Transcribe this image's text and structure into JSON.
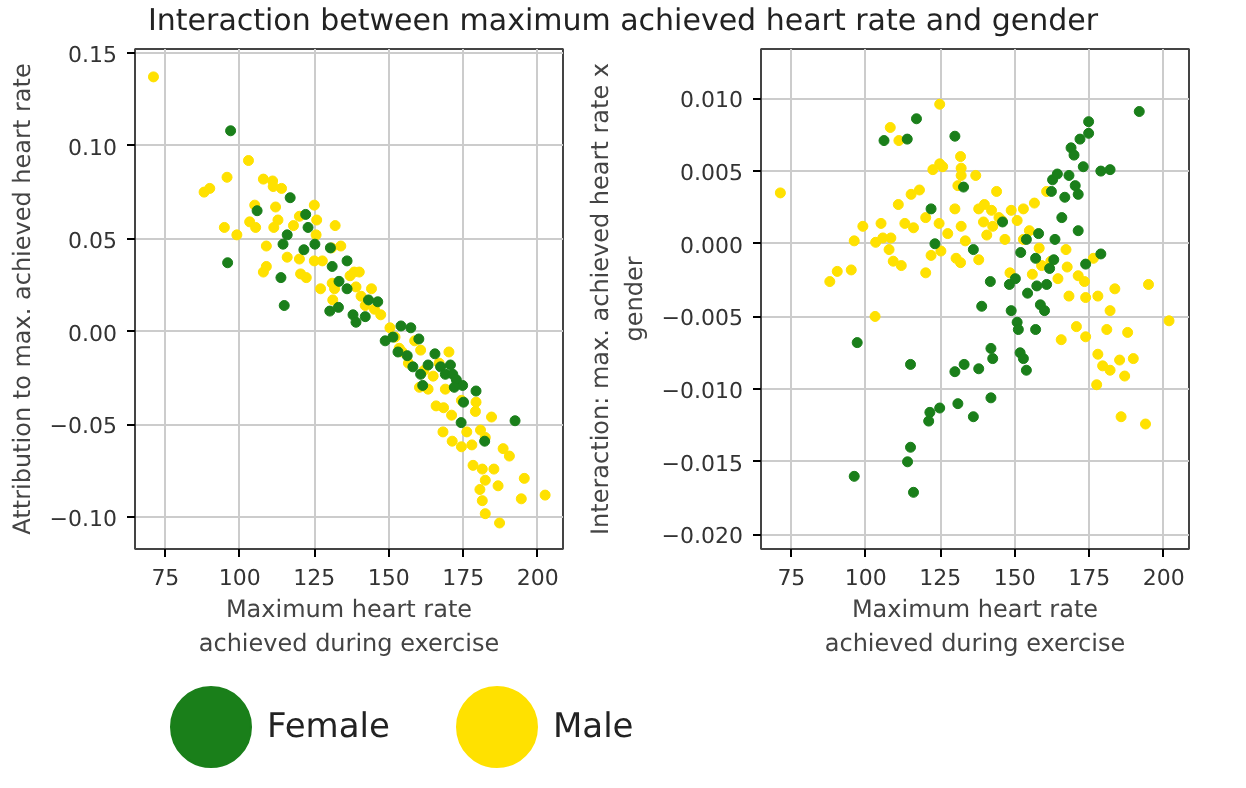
{
  "chart_data": [
    {
      "type": "scatter",
      "title": "Interaction between maximum achieved heart rate and gender",
      "xlabel": "Maximum heart rate\nachieved during exercise",
      "ylabel": "Attribution to max. achieved heart rate",
      "xlim": [
        64.8,
        208.5
      ],
      "ylim": [
        -0.117,
        0.152
      ],
      "xticks": [
        75,
        100,
        125,
        150,
        175,
        200
      ],
      "yticks": [
        {
          "value": -0.1,
          "label": "−0.10"
        },
        {
          "value": -0.05,
          "label": "−0.05"
        },
        {
          "value": 0,
          "label": "0.00"
        },
        {
          "value": 0.05,
          "label": "0.05"
        },
        {
          "value": 0.1,
          "label": "0.10"
        },
        {
          "value": 0.15,
          "label": "0.15"
        }
      ],
      "grid": true,
      "legend": "bottom",
      "marker": "circle",
      "series": [
        {
          "name": "Male",
          "color": "#ffe100",
          "x": [
            71,
            88.0,
            89.9,
            95.7,
            102.9,
            94.8,
            99.0,
            107.9,
            111.0,
            111.2,
            114.0,
            105.0,
            103.3,
            105.3,
            112.0,
            112.8,
            111.4,
            108.9,
            107.9,
            108.9,
            115.9,
            118.0,
            120.0,
            125.0,
            125.8,
            125.6,
            120.0,
            122.3,
            120.4,
            125.0,
            127.7,
            130.8,
            133.9,
            132.0,
            127.1,
            131.0,
            131.8,
            131.2,
            137.0,
            138.4,
            140.1,
            139.0,
            140.7,
            142.1,
            144.2,
            145.2,
            147.3,
            150.4,
            152.1,
            153.5,
            154.5,
            156.6,
            158.7,
            160.7,
            161.8,
            160.3,
            163.2,
            164.9,
            166.9,
            170.2,
            169.0,
            165.9,
            168.4,
            171.1,
            174.4,
            179.3,
            179.1,
            184.5,
            176.2,
            168.2,
            171.3,
            174.4,
            177.9,
            180.8,
            182.4,
            178.3,
            181.4,
            185.3,
            188.4,
            190.5,
            182.4,
            186.7,
            180.6,
            181.4,
            182.4,
            187.2,
            195.5,
            194.5,
            202.5
          ],
          "values": [
            0.137,
            0.075,
            0.077,
            0.083,
            0.092,
            0.056,
            0.052,
            0.082,
            0.081,
            0.078,
            0.077,
            0.068,
            0.059,
            0.056,
            0.067,
            0.06,
            0.056,
            0.046,
            0.032,
            0.035,
            0.04,
            0.057,
            0.062,
            0.068,
            0.06,
            0.052,
            0.039,
            0.029,
            0.031,
            0.038,
            0.038,
            0.045,
            0.046,
            0.057,
            0.023,
            0.026,
            0.023,
            0.017,
            0.03,
            0.032,
            0.032,
            0.024,
            0.019,
            0.014,
            0.023,
            0.012,
            0.009,
            0.002,
            -0.003,
            -0.009,
            -0.011,
            -0.017,
            -0.005,
            -0.01,
            -0.021,
            -0.03,
            -0.031,
            -0.024,
            -0.017,
            -0.011,
            -0.031,
            -0.04,
            -0.041,
            -0.045,
            -0.037,
            -0.038,
            -0.043,
            -0.046,
            -0.054,
            -0.054,
            -0.059,
            -0.062,
            -0.061,
            -0.053,
            -0.057,
            -0.072,
            -0.074,
            -0.074,
            -0.063,
            -0.067,
            -0.08,
            -0.083,
            -0.085,
            -0.091,
            -0.098,
            -0.103,
            -0.079,
            -0.09,
            -0.088
          ]
        },
        {
          "name": "Female",
          "color": "#1a7f1a",
          "x": [
            96.9,
            95.9,
            105.8,
            116.9,
            122.1,
            122.9,
            115.9,
            114.5,
            113.8,
            114.9,
            121.5,
            125.2,
            130.4,
            131.0,
            136.0,
            133.3,
            130.2,
            133.1,
            136.0,
            138.0,
            139.0,
            143.2,
            146.3,
            142.1,
            148.8,
            151.4,
            154.1,
            157.4,
            153.1,
            156.2,
            160.1,
            158.1,
            160.7,
            161.4,
            163.2,
            165.5,
            167.4,
            169.0,
            171.5,
            172.7,
            174.8,
            170.7,
            179.3,
            175.1,
            174.3,
            172.0,
            182.2,
            192.4
          ],
          "values": [
            0.108,
            0.037,
            0.065,
            0.072,
            0.063,
            0.056,
            0.052,
            0.047,
            0.029,
            0.014,
            0.044,
            0.047,
            0.045,
            0.035,
            0.038,
            0.027,
            0.011,
            0.013,
            0.023,
            0.009,
            0.005,
            0.017,
            0.016,
            0.008,
            -0.005,
            -0.003,
            0.003,
            0.002,
            -0.011,
            -0.013,
            -0.004,
            -0.019,
            -0.023,
            -0.029,
            -0.018,
            -0.012,
            -0.019,
            -0.023,
            -0.023,
            -0.026,
            -0.029,
            -0.018,
            -0.032,
            -0.038,
            -0.049,
            -0.03,
            -0.059,
            -0.048
          ]
        }
      ]
    },
    {
      "type": "scatter",
      "xlabel": "Maximum heart rate\nachieved during exercise",
      "ylabel": "Interaction: max. achieved heart rate x\ngender",
      "xlim": [
        64.8,
        208.5
      ],
      "ylim": [
        -0.021,
        0.0134
      ],
      "xticks": [
        75,
        100,
        125,
        150,
        175,
        200
      ],
      "yticks": [
        {
          "value": -0.02,
          "label": "−0.020"
        },
        {
          "value": -0.015,
          "label": "−0.015"
        },
        {
          "value": -0.01,
          "label": "−0.010"
        },
        {
          "value": -0.005,
          "label": "−0.005"
        },
        {
          "value": 0,
          "label": "0.000"
        },
        {
          "value": 0.005,
          "label": "0.005"
        },
        {
          "value": 0.01,
          "label": "0.010"
        }
      ],
      "grid": true,
      "marker": "circle",
      "series": [
        {
          "color": "#ffe100",
          "x": [
            71.3,
            87.9,
            90.4,
            95.1,
            96.1,
            99.0,
            103.1,
            105.1,
            103.3,
            105.7,
            108.4,
            107.8,
            109.2,
            111.9,
            108.2,
            111.1,
            110.9,
            113.1,
            115.2,
            116.0,
            118.0,
            120.1,
            120.1,
            121.9,
            122.5,
            124.8,
            124.8,
            125.8,
            124.6,
            125.2,
            127.5,
            129.9,
            130.9,
            131.8,
            132.0,
            132.0,
            132.0,
            130.3,
            131.8,
            133.4,
            136.9,
            137.9,
            137.9,
            139.8,
            139.5,
            140.6,
            142.2,
            142.6,
            143.9,
            144.7,
            145.7,
            146.7,
            148.8,
            150.8,
            148.4,
            152.9,
            152.9,
            154.9,
            156.6,
            155.9,
            158.2,
            160.7,
            159.0,
            162.1,
            164.5,
            165.6,
            167.2,
            167.6,
            168.2,
            170.7,
            171.3,
            173.4,
            173.8,
            173.8,
            176.4,
            177.5,
            177.9,
            177.9,
            179.5,
            180.9,
            182.0,
            182.0,
            183.6,
            185.2,
            185.7,
            186.9,
            187.9,
            189.8,
            193.9,
            194.9,
            201.8
          ],
          "values": [
            0.0035,
            -0.0026,
            -0.0019,
            -0.0018,
            0.0002,
            0.0012,
            -0.005,
            0.0014,
            0.0001,
            0.0004,
            0.0004,
            -0.0004,
            -0.0012,
            -0.0015,
            0.008,
            0.0071,
            0.0027,
            0.0014,
            0.0034,
            0.0011,
            0.0037,
            0.0018,
            -0.002,
            -0.0008,
            0.0051,
            0.0096,
            0.0055,
            0.0053,
            0.0014,
            -0.0005,
            0.0007,
            0.0024,
            0.004,
            0.006,
            0.0052,
            0.0047,
            0.0012,
            -0.001,
            -0.0013,
            0.0002,
            0.0047,
            0.0024,
            -0.0011,
            0.0027,
            0.0015,
            0.0006,
            0.0023,
            0.0012,
            0.0036,
            0.0018,
            0.0016,
            0.0003,
            0.0023,
            0.0016,
            -0.002,
            0.0024,
            0.0003,
            0.0009,
            0.0028,
            -0.0021,
            -0.0003,
            0.0036,
            -0.0015,
            -0.0012,
            -0.0024,
            -0.0066,
            -0.0004,
            -0.0016,
            -0.0036,
            -0.0057,
            -0.0022,
            -0.0026,
            -0.0064,
            -0.0037,
            -0.001,
            -0.0097,
            -0.0076,
            -0.0036,
            -0.0084,
            -0.0059,
            -0.0087,
            -0.0046,
            -0.0031,
            -0.008,
            -0.0119,
            -0.0091,
            -0.0061,
            -0.0079,
            -0.0124,
            -0.0028,
            -0.0053
          ]
        },
        {
          "color": "#1a7f1a",
          "x": [
            96.1,
            97.1,
            106.1,
            113.9,
            117.0,
            115.0,
            115.0,
            114.0,
            116.0,
            121.5,
            121.1,
            124.8,
            121.9,
            123.2,
            129.9,
            132.8,
            129.9,
            130.9,
            133.0,
            136.1,
            137.9,
            136.1,
            138.9,
            141.8,
            142.0,
            142.6,
            142.0,
            145.9,
            148.2,
            148.8,
            150.2,
            150.8,
            151.2,
            151.8,
            152.9,
            153.9,
            152.0,
            153.9,
            154.3,
            157.0,
            157.0,
            158.0,
            158.6,
            160.0,
            160.7,
            161.7,
            162.3,
            162.7,
            163.1,
            164.3,
            165.8,
            166.8,
            168.2,
            168.9,
            169.9,
            170.3,
            171.3,
            171.3,
            171.9,
            173.0,
            173.8,
            174.8,
            174.8,
            178.9,
            178.9,
            182.0,
            191.8,
            157.4,
            163.5
          ],
          "values": [
            -0.016,
            -0.0068,
            0.0071,
            0.0072,
            0.0086,
            -0.0083,
            -0.014,
            -0.015,
            -0.0171,
            -0.0116,
            -0.0122,
            -0.0113,
            0.0024,
            0.0,
            0.0074,
            0.0039,
            -0.0088,
            -0.011,
            -0.0083,
            -0.0119,
            -0.0086,
            -0.0004,
            -0.0043,
            -0.0026,
            -0.0072,
            -0.0079,
            -0.0106,
            0.0015,
            -0.0028,
            -0.0046,
            -0.0024,
            -0.0054,
            -0.0059,
            -0.0075,
            -0.0079,
            -0.0087,
            -0.0006,
            0.0003,
            -0.0034,
            -0.001,
            -0.0059,
            0.0007,
            -0.0042,
            -0.0046,
            -0.0028,
            -0.0017,
            0.0036,
            0.0044,
            -0.0011,
            0.0048,
            0.0018,
            0.0032,
            0.0047,
            0.0066,
            0.0061,
            0.004,
            0.0034,
            0.0009,
            0.0072,
            0.0053,
            -0.0014,
            0.0084,
            0.0076,
            0.005,
            -0.0007,
            0.0051,
            0.0091,
            -0.0029,
            0.0003
          ]
        }
      ]
    }
  ]
}
